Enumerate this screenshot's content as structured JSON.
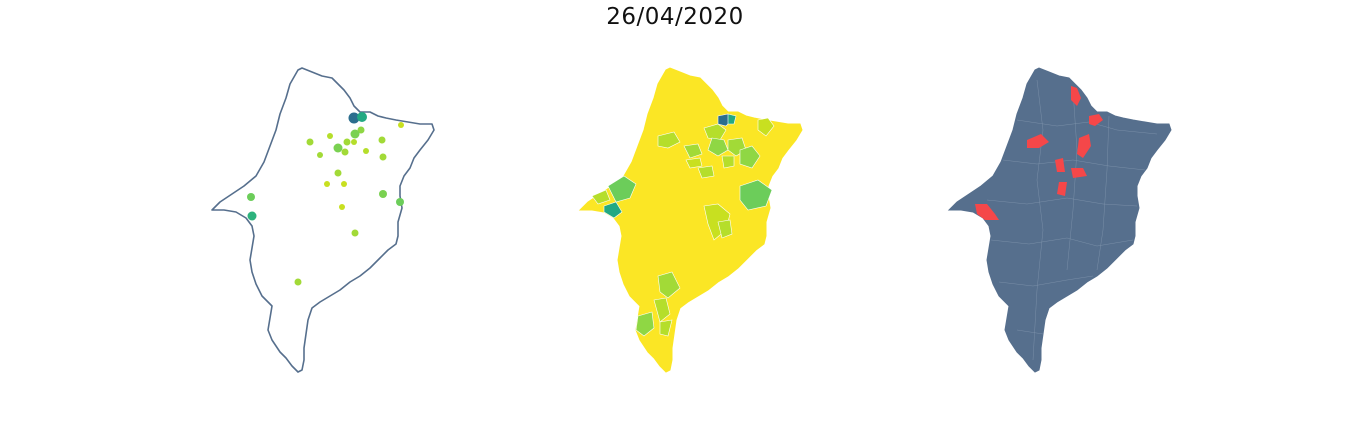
{
  "title": "26/04/2020",
  "colors": {
    "outline": "#566f8d",
    "state_fill_dark": "#566f8d",
    "choropleth_base": "#fbe625",
    "highlight": "#f54749",
    "border_white": "#ffffff"
  },
  "panels": [
    {
      "id": "points",
      "kind": "proportional-points"
    },
    {
      "id": "choropleth",
      "kind": "choropleth"
    },
    {
      "id": "highlight",
      "kind": "highlighted-municipalities"
    }
  ]
}
